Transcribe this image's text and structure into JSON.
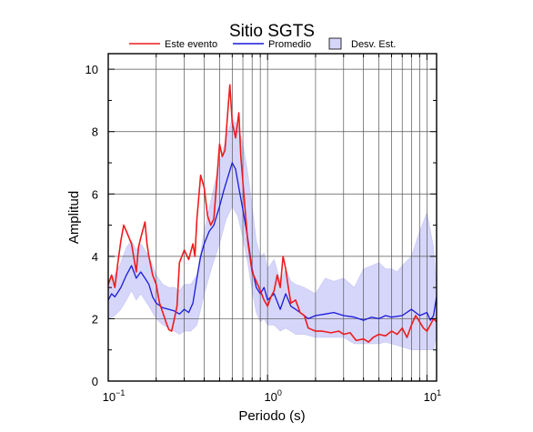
{
  "chart_data": {
    "type": "line",
    "title": "Sitio SGTS",
    "xlabel": "Periodo (s)",
    "ylabel": "Amplitud",
    "x_scale": "log",
    "xlim": [
      0.1,
      11.5
    ],
    "ylim": [
      0,
      10.5
    ],
    "grid": true,
    "legend_position": "top-center",
    "x_ticks": [
      {
        "value": 0.1,
        "base": "10",
        "exp": "−1"
      },
      {
        "value": 1,
        "base": "10",
        "exp": "0"
      },
      {
        "value": 10,
        "base": "10",
        "exp": "1"
      }
    ],
    "y_ticks": [
      "0",
      "2",
      "4",
      "6",
      "8",
      "10"
    ],
    "y_tick_values": [
      0,
      2,
      4,
      6,
      8,
      10
    ],
    "legend": {
      "event_label": "Este evento",
      "mean_label": "Promedio",
      "std_label": "Desv. Est."
    },
    "colors": {
      "event": "#ee1c1c",
      "mean": "#1a1ad8",
      "band": "#d6d6fb",
      "band_edge": "#c4c4f2"
    },
    "series": [
      {
        "name": "Este evento",
        "x": [
          0.1,
          0.105,
          0.11,
          0.115,
          0.12,
          0.125,
          0.13,
          0.14,
          0.15,
          0.155,
          0.16,
          0.17,
          0.175,
          0.18,
          0.19,
          0.2,
          0.21,
          0.22,
          0.23,
          0.24,
          0.25,
          0.26,
          0.27,
          0.28,
          0.3,
          0.32,
          0.34,
          0.35,
          0.36,
          0.38,
          0.4,
          0.42,
          0.44,
          0.46,
          0.48,
          0.5,
          0.52,
          0.54,
          0.56,
          0.58,
          0.6,
          0.63,
          0.66,
          0.68,
          0.7,
          0.72,
          0.75,
          0.8,
          0.85,
          0.9,
          0.95,
          1.0,
          1.05,
          1.1,
          1.15,
          1.2,
          1.25,
          1.3,
          1.35,
          1.4,
          1.5,
          1.6,
          1.7,
          1.8,
          2.0,
          2.2,
          2.5,
          2.8,
          3.0,
          3.3,
          3.6,
          4.0,
          4.3,
          4.6,
          5.0,
          5.5,
          6.0,
          6.5,
          7.0,
          7.5,
          8.0,
          8.5,
          9.0,
          9.5,
          10.0,
          10.5,
          11.0,
          11.5
        ],
        "values": [
          3.1,
          3.4,
          3.0,
          3.8,
          4.5,
          5.0,
          4.8,
          4.4,
          3.5,
          4.3,
          4.6,
          5.1,
          4.4,
          4.0,
          3.4,
          3.1,
          2.5,
          2.2,
          1.9,
          1.65,
          1.6,
          2.0,
          2.4,
          3.8,
          4.2,
          3.9,
          4.4,
          4.0,
          5.2,
          6.6,
          6.2,
          5.3,
          5.0,
          5.2,
          6.4,
          7.6,
          7.2,
          7.4,
          8.5,
          9.5,
          8.3,
          7.8,
          8.6,
          7.2,
          6.4,
          5.6,
          4.5,
          3.5,
          3.2,
          2.9,
          2.6,
          2.4,
          2.7,
          2.9,
          3.4,
          3.0,
          4.0,
          3.6,
          3.0,
          2.5,
          2.6,
          2.2,
          2.1,
          1.7,
          1.6,
          1.6,
          1.55,
          1.6,
          1.5,
          1.55,
          1.3,
          1.35,
          1.25,
          1.4,
          1.5,
          1.45,
          1.6,
          1.5,
          1.7,
          1.4,
          1.8,
          2.1,
          1.9,
          1.7,
          1.6,
          1.8,
          2.0,
          1.9
        ]
      },
      {
        "name": "Promedio",
        "x": [
          0.1,
          0.105,
          0.11,
          0.12,
          0.13,
          0.14,
          0.15,
          0.16,
          0.17,
          0.18,
          0.19,
          0.2,
          0.22,
          0.24,
          0.26,
          0.28,
          0.3,
          0.32,
          0.34,
          0.36,
          0.38,
          0.4,
          0.43,
          0.46,
          0.5,
          0.53,
          0.56,
          0.6,
          0.63,
          0.66,
          0.7,
          0.75,
          0.8,
          0.85,
          0.9,
          0.95,
          1.0,
          1.1,
          1.2,
          1.3,
          1.4,
          1.5,
          1.6,
          1.8,
          2.0,
          2.3,
          2.6,
          3.0,
          3.5,
          4.0,
          4.5,
          5.0,
          5.5,
          6.0,
          7.0,
          8.0,
          9.0,
          10.0,
          10.5,
          11.0,
          11.5
        ],
        "values": [
          2.6,
          2.8,
          2.7,
          3.0,
          3.4,
          3.7,
          3.3,
          3.5,
          3.3,
          3.1,
          2.7,
          2.5,
          2.35,
          2.3,
          2.25,
          2.15,
          2.3,
          2.2,
          2.5,
          3.3,
          4.0,
          4.4,
          4.8,
          5.0,
          5.6,
          6.1,
          6.5,
          7.0,
          6.8,
          6.2,
          5.5,
          4.6,
          3.6,
          3.0,
          2.8,
          3.0,
          2.6,
          2.8,
          2.3,
          2.8,
          2.4,
          2.3,
          2.2,
          2.0,
          2.1,
          2.15,
          2.2,
          2.1,
          2.05,
          1.95,
          2.05,
          2.0,
          2.1,
          2.05,
          2.1,
          2.3,
          2.1,
          2.2,
          1.95,
          2.1,
          2.7
        ]
      },
      {
        "name": "Desv. Est.",
        "x": [
          0.1,
          0.11,
          0.12,
          0.13,
          0.14,
          0.15,
          0.16,
          0.17,
          0.18,
          0.2,
          0.22,
          0.24,
          0.26,
          0.28,
          0.3,
          0.33,
          0.36,
          0.4,
          0.45,
          0.5,
          0.55,
          0.6,
          0.65,
          0.7,
          0.75,
          0.8,
          0.85,
          0.9,
          0.95,
          1.0,
          1.1,
          1.2,
          1.3,
          1.4,
          1.5,
          1.7,
          2.0,
          2.3,
          2.6,
          3.0,
          3.5,
          4.0,
          4.5,
          5.0,
          5.5,
          6.0,
          6.5,
          7.0,
          8.0,
          9.0,
          10.0,
          11.0,
          11.5
        ],
        "upper": [
          3.2,
          3.4,
          3.8,
          4.3,
          4.5,
          4.2,
          4.4,
          4.2,
          4.0,
          3.4,
          3.1,
          3.0,
          3.0,
          2.9,
          3.1,
          3.1,
          3.4,
          4.8,
          6.0,
          7.0,
          7.8,
          8.4,
          8.2,
          7.6,
          6.7,
          5.6,
          4.5,
          4.0,
          4.1,
          3.6,
          3.9,
          3.2,
          3.6,
          3.2,
          3.1,
          3.0,
          2.8,
          3.3,
          3.2,
          3.3,
          3.0,
          3.6,
          3.7,
          3.8,
          3.6,
          3.6,
          3.5,
          3.7,
          4.0,
          4.8,
          5.4,
          4.3,
          3.0
        ],
        "lower": [
          2.0,
          2.1,
          2.3,
          2.6,
          2.9,
          2.6,
          2.8,
          2.6,
          2.4,
          2.0,
          1.8,
          1.7,
          1.6,
          1.5,
          1.6,
          1.6,
          1.8,
          2.8,
          3.7,
          4.4,
          5.2,
          5.6,
          5.3,
          4.6,
          3.8,
          2.9,
          2.2,
          1.9,
          2.0,
          1.8,
          1.8,
          1.6,
          1.7,
          1.6,
          1.5,
          1.5,
          1.4,
          1.4,
          1.4,
          1.4,
          1.2,
          1.2,
          1.2,
          1.2,
          1.25,
          1.2,
          1.15,
          1.1,
          1.0,
          1.0,
          1.0,
          1.0,
          1.5
        ]
      }
    ]
  }
}
